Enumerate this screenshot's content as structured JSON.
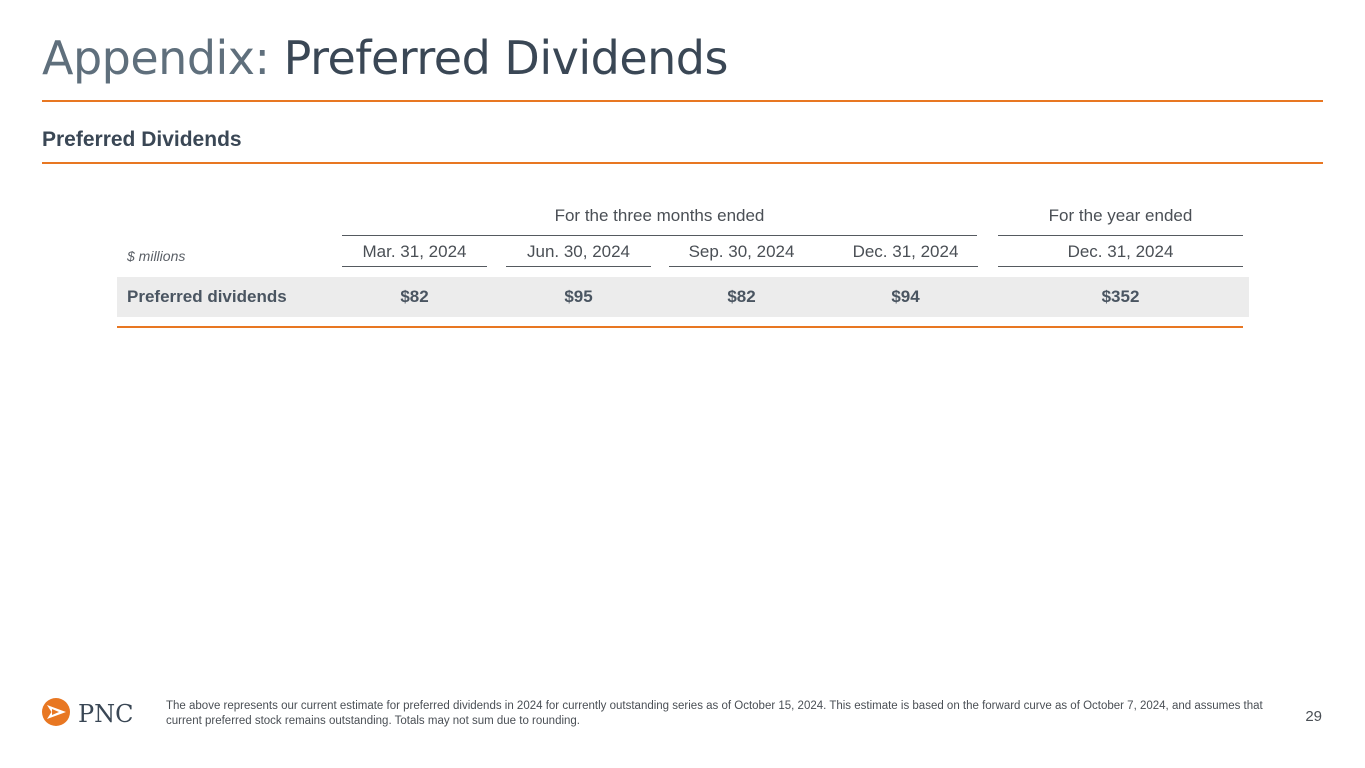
{
  "title": {
    "prefix": "Appendix:",
    "main": "Preferred Dividends"
  },
  "section_title": "Preferred Dividends",
  "table": {
    "group_headers": {
      "quarterly": "For the three months ended",
      "annual": "For the year ended"
    },
    "unit_label": "$ millions",
    "columns": [
      "Mar. 31, 2024",
      "Jun. 30, 2024",
      "Sep. 30, 2024",
      "Dec. 31, 2024",
      "Dec. 31, 2024"
    ],
    "row": {
      "label": "Preferred dividends",
      "values": [
        "$82",
        "$95",
        "$82",
        "$94",
        "$352"
      ]
    }
  },
  "footer": {
    "logo_text": "PNC",
    "note": "The above represents our current estimate for preferred dividends in 2024 for currently outstanding series as of October 15, 2024. This estimate is based on the forward curve as of October 7, 2024, and assumes that current preferred stock remains outstanding. Totals may not sum due to rounding.",
    "page_number": "29"
  },
  "colors": {
    "accent": "#e87722",
    "title_prefix": "#5f6f7c",
    "title_main": "#3a4755",
    "row_fill": "#ececec"
  }
}
